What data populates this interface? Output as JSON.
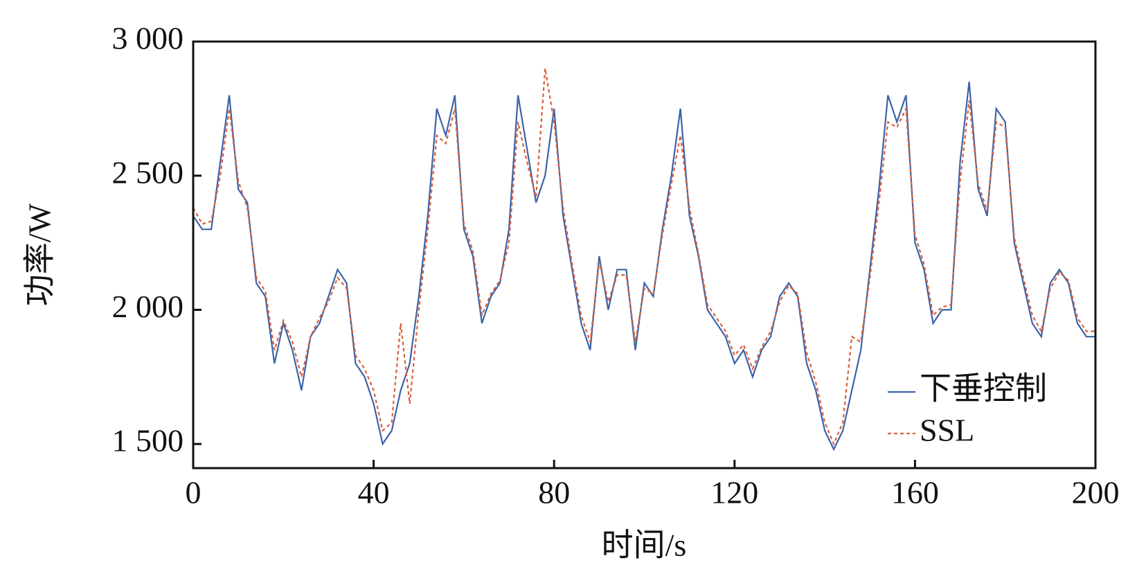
{
  "chart_data": {
    "type": "line",
    "xlabel": "时间/s",
    "ylabel": "功率/W",
    "x": [
      0,
      2,
      4,
      6,
      8,
      10,
      12,
      14,
      16,
      18,
      20,
      22,
      24,
      26,
      28,
      30,
      32,
      34,
      36,
      38,
      40,
      42,
      44,
      46,
      48,
      50,
      52,
      54,
      56,
      58,
      60,
      62,
      64,
      66,
      68,
      70,
      72,
      74,
      76,
      78,
      80,
      82,
      84,
      86,
      88,
      90,
      92,
      94,
      96,
      98,
      100,
      102,
      104,
      106,
      108,
      110,
      112,
      114,
      116,
      118,
      120,
      122,
      124,
      126,
      128,
      130,
      132,
      134,
      136,
      138,
      140,
      142,
      144,
      146,
      148,
      150,
      152,
      154,
      156,
      158,
      160,
      162,
      164,
      166,
      168,
      170,
      172,
      174,
      176,
      178,
      180,
      182,
      184,
      186,
      188,
      190,
      192,
      194,
      196,
      198,
      200
    ],
    "series": [
      {
        "name": "下垂控制",
        "color": "#3b62a8",
        "dash": false,
        "values": [
          2350,
          2300,
          2300,
          2550,
          2800,
          2450,
          2400,
          2100,
          2050,
          1800,
          1950,
          1850,
          1700,
          1900,
          1950,
          2050,
          2150,
          2100,
          1800,
          1750,
          1650,
          1500,
          1550,
          1700,
          1800,
          2050,
          2350,
          2750,
          2650,
          2800,
          2300,
          2200,
          1950,
          2050,
          2100,
          2300,
          2800,
          2600,
          2400,
          2500,
          2750,
          2350,
          2150,
          1950,
          1850,
          2200,
          2000,
          2150,
          2150,
          1850,
          2100,
          2050,
          2300,
          2500,
          2750,
          2350,
          2200,
          2000,
          1950,
          1900,
          1800,
          1850,
          1750,
          1850,
          1900,
          2050,
          2100,
          2050,
          1800,
          1700,
          1550,
          1480,
          1550,
          1700,
          1850,
          2150,
          2450,
          2800,
          2700,
          2800,
          2250,
          2150,
          1950,
          2000,
          2000,
          2550,
          2850,
          2450,
          2350,
          2750,
          2700,
          2250,
          2100,
          1950,
          1900,
          2100,
          2150,
          2100,
          1950,
          1900,
          1900
        ]
      },
      {
        "name": "SSL",
        "color": "#d9603b",
        "dash": true,
        "values": [
          2380,
          2320,
          2330,
          2500,
          2750,
          2480,
          2380,
          2120,
          2070,
          1850,
          1960,
          1880,
          1750,
          1900,
          1970,
          2030,
          2120,
          2080,
          1830,
          1780,
          1700,
          1550,
          1580,
          1950,
          1650,
          2000,
          2300,
          2650,
          2620,
          2750,
          2320,
          2220,
          1980,
          2060,
          2110,
          2250,
          2700,
          2550,
          2420,
          2900,
          2700,
          2380,
          2170,
          1980,
          1880,
          2180,
          2030,
          2130,
          2130,
          1880,
          2080,
          2060,
          2280,
          2470,
          2650,
          2380,
          2210,
          2020,
          1970,
          1920,
          1830,
          1870,
          1780,
          1860,
          1920,
          2030,
          2090,
          2060,
          1840,
          1730,
          1580,
          1500,
          1580,
          1900,
          1880,
          2120,
          2400,
          2700,
          2680,
          2750,
          2280,
          2170,
          1980,
          2010,
          2020,
          2480,
          2780,
          2470,
          2370,
          2700,
          2680,
          2270,
          2120,
          1980,
          1920,
          2080,
          2140,
          2110,
          1970,
          1920,
          1920
        ]
      }
    ],
    "xlim": [
      0,
      200
    ],
    "xticks": [
      0,
      40,
      80,
      120,
      160,
      200
    ],
    "ylim": [
      1410,
      3000
    ],
    "yticks": [
      {
        "value": 1500,
        "label": "1 500"
      },
      {
        "value": 2000,
        "label": "2 000"
      },
      {
        "value": 2500,
        "label": "2 500"
      },
      {
        "value": 3000,
        "label": "3 000"
      }
    ],
    "legend": "lower right",
    "grid": false
  }
}
